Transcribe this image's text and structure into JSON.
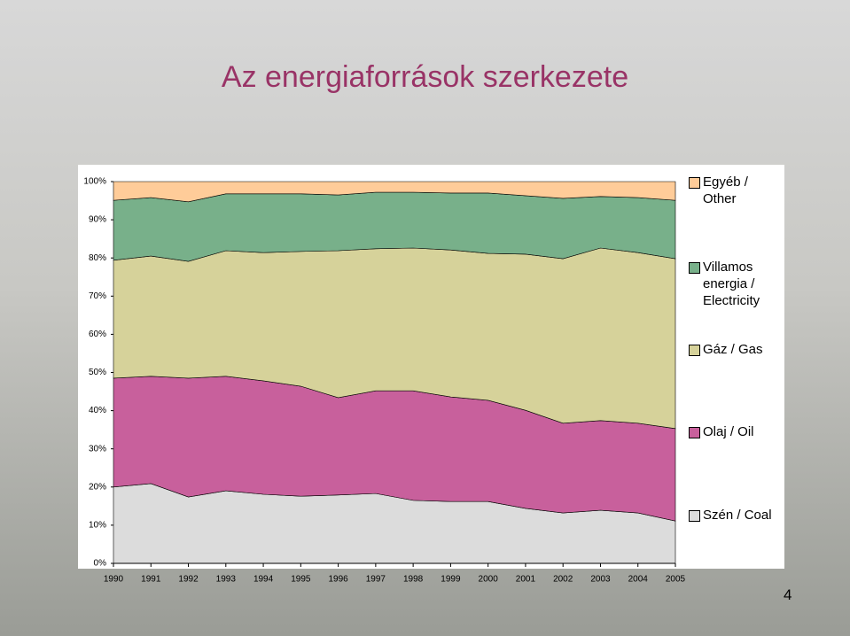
{
  "chart_data": {
    "type": "stacked_area_percent",
    "title": "Az energiaforrások szerkezete",
    "page_number": "4",
    "x": [
      1990,
      1991,
      1992,
      1993,
      1994,
      1995,
      1996,
      1997,
      1998,
      1999,
      2000,
      2001,
      2002,
      2003,
      2004,
      2005
    ],
    "xlim": [
      1990,
      2005
    ],
    "xticks": [
      1990,
      1991,
      1992,
      1993,
      1994,
      1995,
      1996,
      1997,
      1998,
      1999,
      2000,
      2001,
      2002,
      2003,
      2004,
      2005
    ],
    "ylim": [
      0,
      100
    ],
    "yticks": [
      {
        "value": 0,
        "label": "0%"
      },
      {
        "value": 10,
        "label": "10%"
      },
      {
        "value": 20,
        "label": "20%"
      },
      {
        "value": 30,
        "label": "30%"
      },
      {
        "value": 40,
        "label": "40%"
      },
      {
        "value": 50,
        "label": "50%"
      },
      {
        "value": 60,
        "label": "60%"
      },
      {
        "value": 70,
        "label": "70%"
      },
      {
        "value": 80,
        "label": "80%"
      },
      {
        "value": 90,
        "label": "90%"
      },
      {
        "value": 100,
        "label": "100%"
      }
    ],
    "series": [
      {
        "name": "Szén / Coal",
        "color": "#dcdcdc",
        "values": [
          20.0,
          20.9,
          17.4,
          19.0,
          18.1,
          17.6,
          17.9,
          18.3,
          16.5,
          16.2,
          16.2,
          14.4,
          13.2,
          13.9,
          13.2,
          11.1
        ]
      },
      {
        "name": "Olaj / Oil",
        "color": "#c8609c",
        "values": [
          28.5,
          28.1,
          31.1,
          30.0,
          29.7,
          28.8,
          25.5,
          26.9,
          28.7,
          27.4,
          26.5,
          25.7,
          23.5,
          23.5,
          23.5,
          24.2
        ]
      },
      {
        "name": "Gáz / Gas",
        "color": "#d6d29a",
        "values": [
          30.9,
          31.5,
          30.6,
          32.9,
          33.6,
          35.3,
          38.5,
          37.2,
          37.4,
          38.5,
          38.5,
          40.9,
          43.1,
          45.2,
          44.7,
          44.5
        ]
      },
      {
        "name": "Villamos energia / Electricity",
        "color": "#78b08a",
        "values": [
          15.7,
          15.3,
          15.6,
          14.9,
          15.4,
          15.1,
          14.6,
          14.8,
          14.6,
          14.9,
          15.8,
          15.3,
          15.8,
          13.5,
          14.4,
          15.3
        ]
      },
      {
        "name": "Egyéb / Other",
        "color": "#ffcc99",
        "values": [
          4.9,
          4.2,
          5.3,
          3.2,
          3.2,
          3.2,
          3.5,
          2.8,
          2.8,
          3.0,
          3.0,
          3.7,
          4.4,
          3.9,
          4.2,
          4.9
        ]
      }
    ]
  }
}
